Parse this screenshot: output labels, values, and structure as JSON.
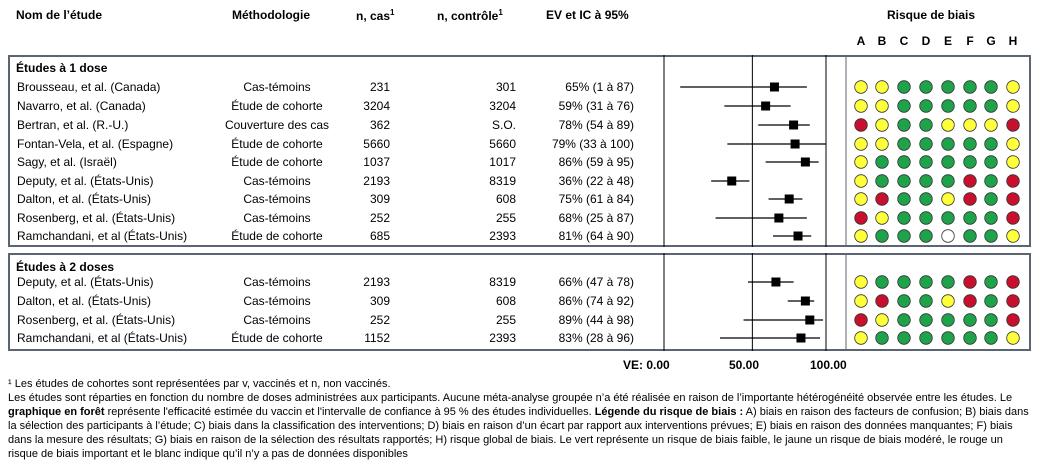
{
  "headers": {
    "study": "Nom de l’étude",
    "method": "Méthodologie",
    "cases": "n, cas",
    "cases_sup": "1",
    "controls": "n, contrôle",
    "controls_sup": "1",
    "ve": "EV et IC à 95%",
    "bias": "Risque de biais",
    "bias_letters": [
      "A",
      "B",
      "C",
      "D",
      "E",
      "F",
      "G",
      "H"
    ]
  },
  "axis": {
    "label_0": "VE: 0.00",
    "label_50": "50.00",
    "label_100": "100.00"
  },
  "bias_colors": {
    "G": "#1fa34a",
    "Y": "#ffff3a",
    "R": "#c8102e",
    "W": "#ffffff"
  },
  "chart_data": {
    "type": "forest",
    "x_min": -10,
    "x_max": 100,
    "sections": [
      {
        "title": "Études à 1 dose",
        "rows": [
          {
            "study": "Brousseau, et al. (Canada)",
            "method": "Cas-témoins",
            "cases": "231",
            "controls": "301",
            "ve_text": "65% (1 à 87)",
            "ve": 65,
            "lo": 1,
            "hi": 87,
            "bias": "YYGGGGGY"
          },
          {
            "study": "Navarro, et al. (Canada)",
            "method": "Étude de cohorte",
            "cases": "3204",
            "controls": "3204",
            "ve_text": "59% (31 à 76)",
            "ve": 59,
            "lo": 31,
            "hi": 76,
            "bias": "YYGGGGGY"
          },
          {
            "study": "Bertran, et al. (R.-U.)",
            "method": "Couverture des cas",
            "cases": "362",
            "controls": "S.O.",
            "ve_text": "78% (54 à 89)",
            "ve": 78,
            "lo": 54,
            "hi": 89,
            "bias": "RYGGYYYR"
          },
          {
            "study": "Fontan-Vela, et al. (Espagne)",
            "method": "Étude de cohorte",
            "cases": "5660",
            "controls": "5660",
            "ve_text": "79% (33 à 100)",
            "ve": 79,
            "lo": 33,
            "hi": 100,
            "bias": "YYGGGGGY"
          },
          {
            "study": "Sagy, et al. (Israël)",
            "method": "Étude de cohorte",
            "cases": "1037",
            "controls": "1017",
            "ve_text": "86% (59 à 95)",
            "ve": 86,
            "lo": 59,
            "hi": 95,
            "bias": "YGGGGGGY"
          },
          {
            "study": "Deputy, et al. (États-Unis)",
            "method": "Cas-témoins",
            "cases": "2193",
            "controls": "8319",
            "ve_text": "36% (22 à 48)",
            "ve": 36,
            "lo": 22,
            "hi": 48,
            "bias": "YGGGGRGR"
          },
          {
            "study": "Dalton, et al. (États-Unis)",
            "method": "Cas-témoins",
            "cases": "309",
            "controls": "608",
            "ve_text": "75% (61 à 84)",
            "ve": 75,
            "lo": 61,
            "hi": 84,
            "bias": "YRGGYRGR"
          },
          {
            "study": "Rosenberg, et al. (États-Unis)",
            "method": "Cas-témoins",
            "cases": "252",
            "controls": "255",
            "ve_text": "68% (25 à 87)",
            "ve": 68,
            "lo": 25,
            "hi": 87,
            "bias": "RYGGGGGR"
          },
          {
            "study": "Ramchandani, et al (États-Unis)",
            "method": "Étude de cohorte",
            "cases": "685",
            "controls": "2393",
            "ve_text": "81% (64 à 90)",
            "ve": 81,
            "lo": 64,
            "hi": 90,
            "bias": "YGGGWGGY"
          }
        ]
      },
      {
        "title": "Études à 2 doses",
        "rows": [
          {
            "study": "Deputy, et al. (États-Unis)",
            "method": "Cas-témoins",
            "cases": "2193",
            "controls": "8319",
            "ve_text": "66% (47 à 78)",
            "ve": 66,
            "lo": 47,
            "hi": 78,
            "bias": "YGGGGRGR"
          },
          {
            "study": "Dalton, et al. (États-Unis)",
            "method": "Cas-témoins",
            "cases": "309",
            "controls": "608",
            "ve_text": "86% (74 à 92)",
            "ve": 86,
            "lo": 74,
            "hi": 92,
            "bias": "YRGGYRGR"
          },
          {
            "study": "Rosenberg, et al. (États-Unis)",
            "method": "Cas-témoins",
            "cases": "252",
            "controls": "255",
            "ve_text": "89% (44 à 98)",
            "ve": 89,
            "lo": 44,
            "hi": 98,
            "bias": "RYGGGGGR"
          },
          {
            "study": "Ramchandani, et al (États-Unis)",
            "method": "Étude de cohorte",
            "cases": "1152",
            "controls": "2393",
            "ve_text": "83% (28 à 96)",
            "ve": 83,
            "lo": 28,
            "hi": 96,
            "bias": "YGGGGGGY"
          }
        ]
      }
    ]
  },
  "footnotes": {
    "note1": "¹ Les études de cohortes sont représentées par v, vaccinés et n, non vaccinés.",
    "p1": "Les études sont réparties en fonction du nombre de doses administrées aux participants. Aucune méta-analyse groupée n’a été réalisée en raison de l’importante hétérogénéité observée entre les études. Le ",
    "bold1": "graphique en forêt",
    "p2": " représente l'efficacité estimée du vaccin et l'intervalle de confiance à 95 % des études individuelles. ",
    "bold2": "Légende du risque de biais :",
    "p3": " A) biais en raison des facteurs de confusion; B) biais dans la sélection des participants à l’étude; C) biais dans la classification des interventions; D) biais en raison d’un écart par rapport aux interventions prévues; E) biais en raison des données manquantes; F) biais dans la mesure des résultats; G) biais en raison de la sélection des résultats rapportés; H) risque global de biais. Le vert représente un risque de biais faible, le jaune un risque de biais modéré, le rouge un risque de biais important et le blanc indique qu’il n’y a pas de données disponibles"
  }
}
